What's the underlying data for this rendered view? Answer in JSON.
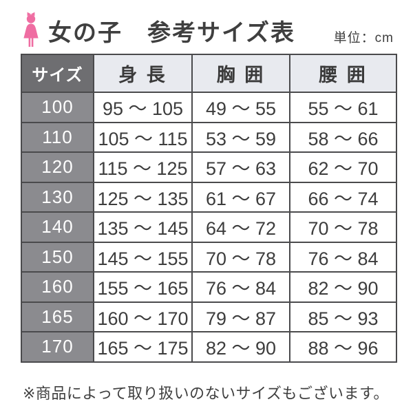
{
  "header": {
    "icon": "girl-pictogram",
    "title": "女の子　参考サイズ表",
    "unit_label": "単位：cm"
  },
  "table": {
    "columns": [
      "サイズ",
      "身 長",
      "胸 囲",
      "腰 囲"
    ],
    "rows": [
      {
        "size": "100",
        "height": "95 ～ 105",
        "chest": "49 ～ 55",
        "waist": "55 ～ 61"
      },
      {
        "size": "110",
        "height": "105 ～ 115",
        "chest": "53 ～ 59",
        "waist": "58 ～ 66"
      },
      {
        "size": "120",
        "height": "115 ～ 125",
        "chest": "57 ～ 63",
        "waist": "62 ～ 70"
      },
      {
        "size": "130",
        "height": "125 ～ 135",
        "chest": "61 ～ 67",
        "waist": "66 ～ 74"
      },
      {
        "size": "140",
        "height": "135 ～ 145",
        "chest": "64 ～ 72",
        "waist": "70 ～ 78"
      },
      {
        "size": "150",
        "height": "145 ～ 155",
        "chest": "70 ～ 78",
        "waist": "76 ～ 84"
      },
      {
        "size": "160",
        "height": "155 ～ 165",
        "chest": "76 ～ 84",
        "waist": "82 ～ 90"
      },
      {
        "size": "165",
        "height": "160 ～ 170",
        "chest": "79 ～ 87",
        "waist": "85 ～ 93"
      },
      {
        "size": "170",
        "height": "165 ～ 175",
        "chest": "82 ～ 90",
        "waist": "88 ～ 96"
      }
    ]
  },
  "footer": {
    "note": "※商品によって取り扱いのないサイズもございます。"
  },
  "colors": {
    "accent_pink": "#ef6da2",
    "header_dark_cell": "#6e6e71",
    "size_cell_gray": "#8b8b8f",
    "header_light_cell": "#e8eaef",
    "border": "#4a4a4c",
    "text": "#3f3f3f"
  }
}
